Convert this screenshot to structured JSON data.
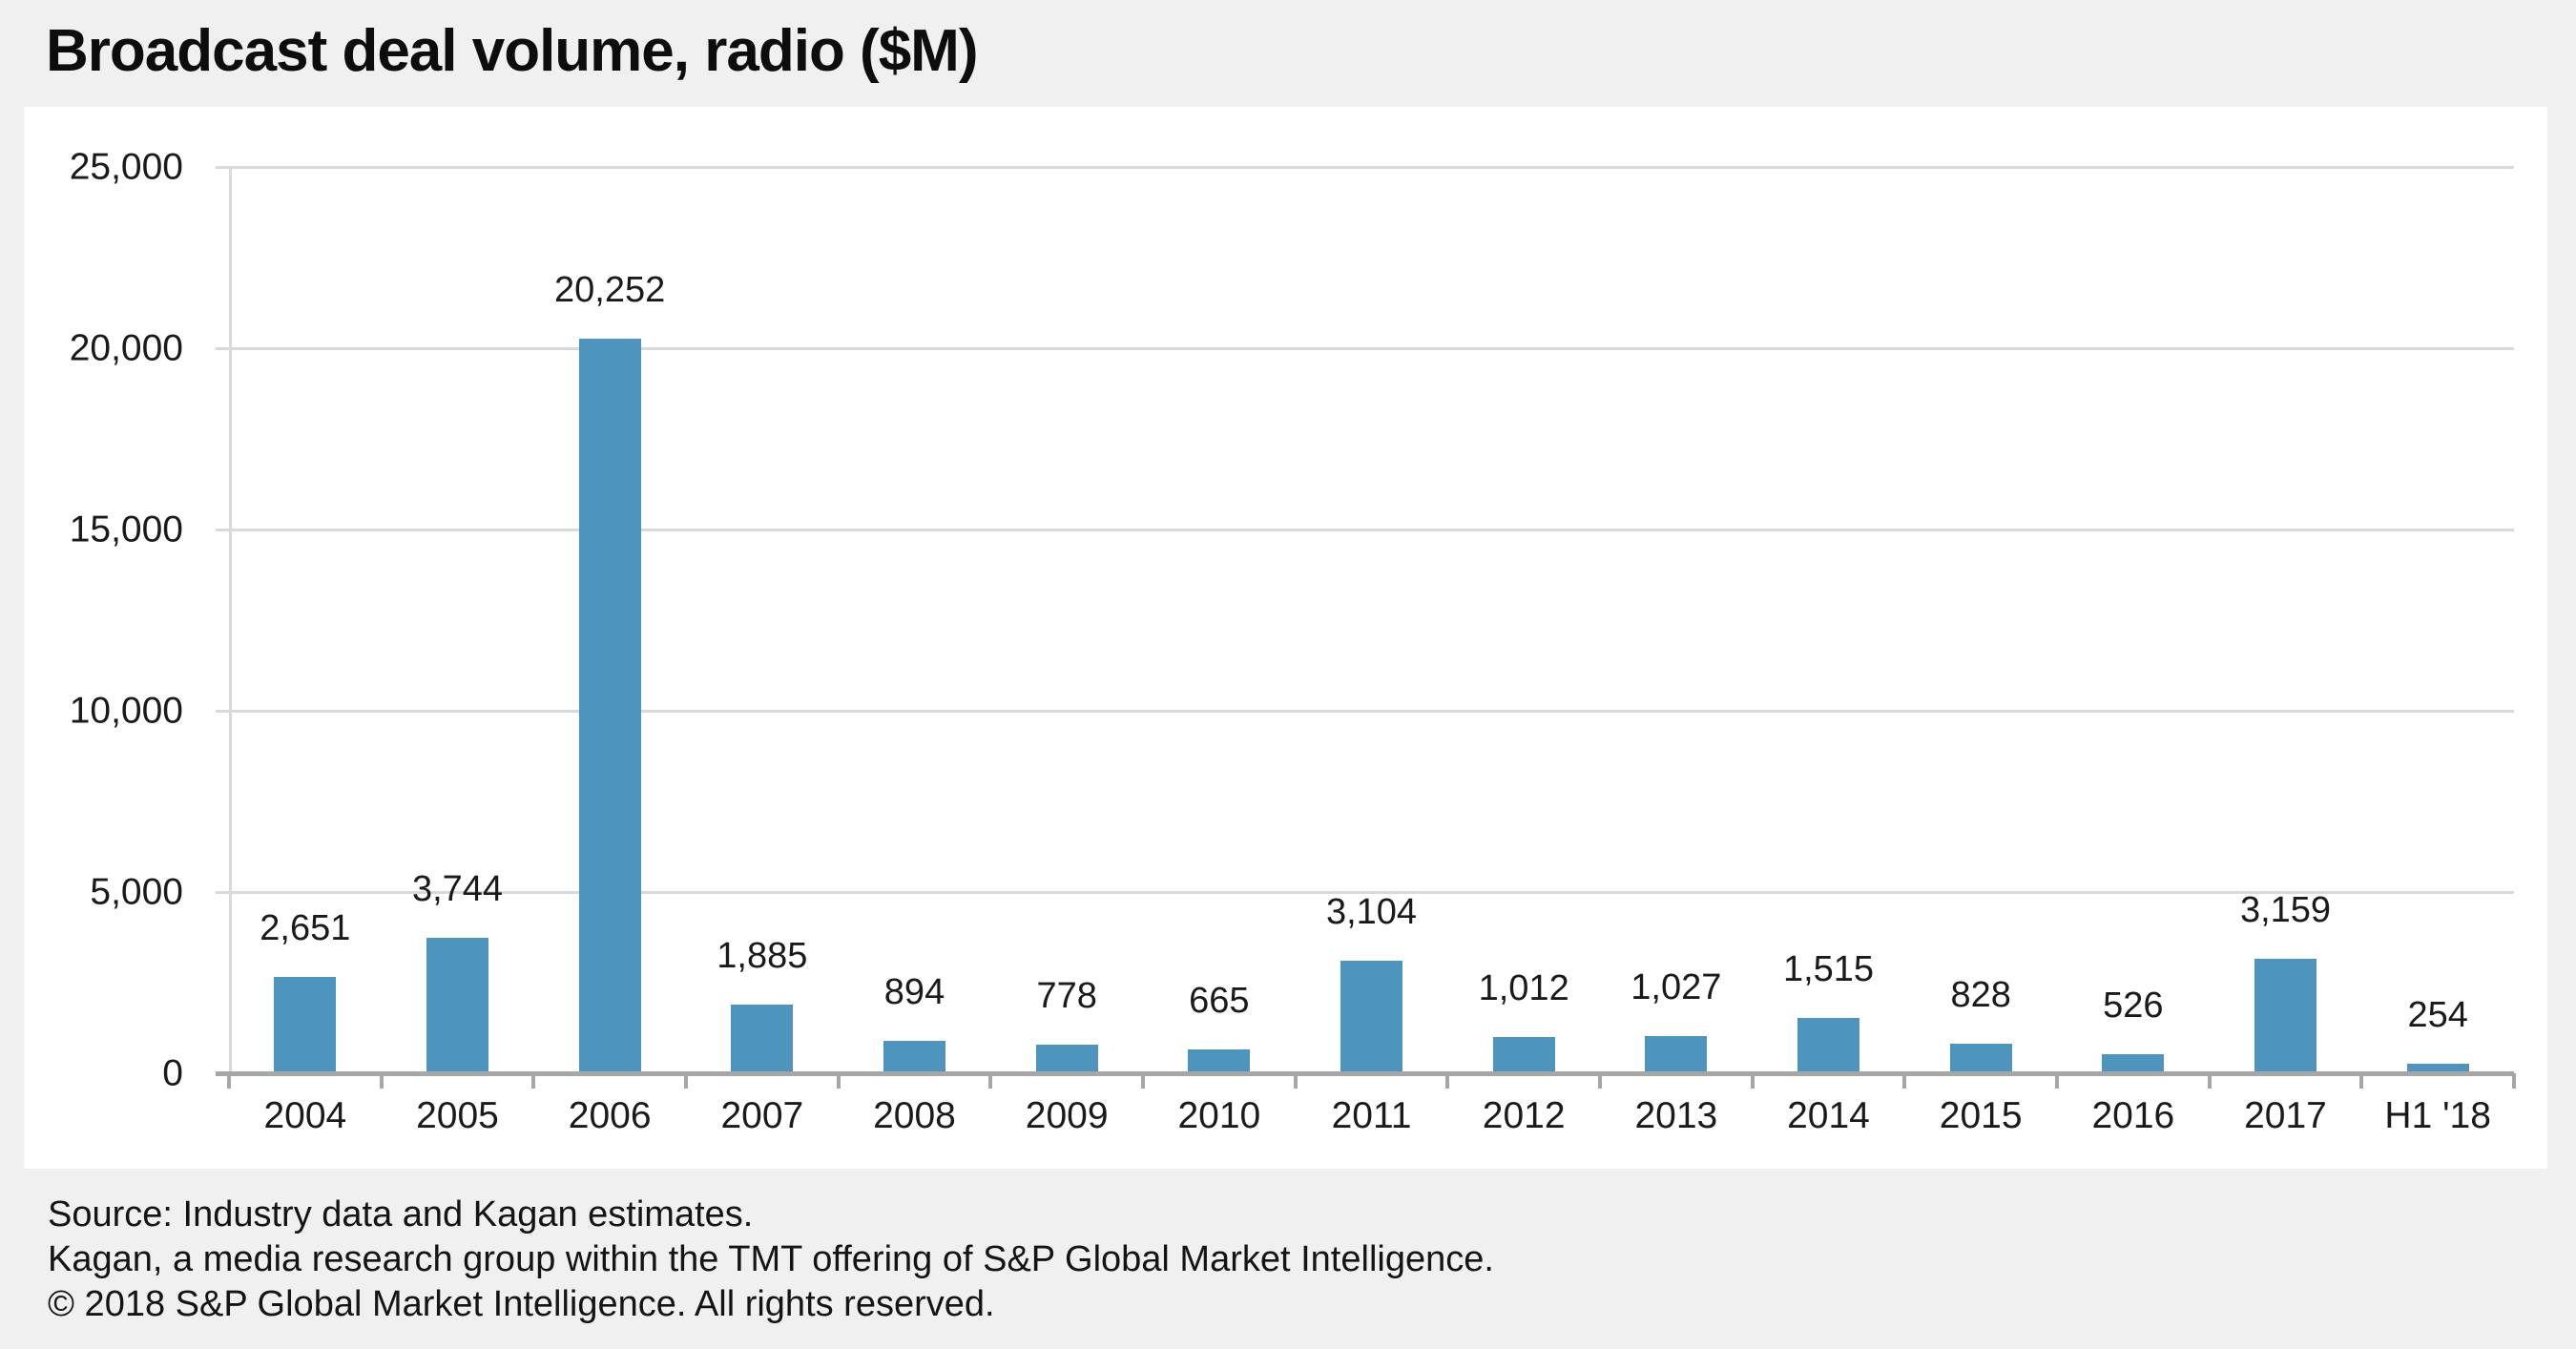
{
  "title": "Broadcast deal volume, radio ($M)",
  "chart_data": {
    "type": "bar",
    "title": "Broadcast deal volume, radio ($M)",
    "categories": [
      "2004",
      "2005",
      "2006",
      "2007",
      "2008",
      "2009",
      "2010",
      "2011",
      "2012",
      "2013",
      "2014",
      "2015",
      "2016",
      "2017",
      "H1 '18"
    ],
    "values": [
      2651,
      3744,
      20252,
      1885,
      894,
      778,
      665,
      3104,
      1012,
      1027,
      1515,
      828,
      526,
      3159,
      254
    ],
    "value_labels": [
      "2,651",
      "3,744",
      "20,252",
      "1,885",
      "894",
      "778",
      "665",
      "3,104",
      "1,012",
      "1,027",
      "1,515",
      "828",
      "526",
      "3,159",
      "254"
    ],
    "xlabel": "",
    "ylabel": "",
    "ylim": [
      0,
      25000
    ],
    "ytick_step": 5000,
    "ytick_labels": [
      "0",
      "5,000",
      "10,000",
      "15,000",
      "20,000",
      "25,000"
    ],
    "grid": "horizontal",
    "legend": "none"
  },
  "footer": {
    "line1": "Source: Industry data and Kagan estimates.",
    "line2": "Kagan, a media research group within the TMT offering of S&P Global Market Intelligence.",
    "line3": "© 2018 S&P Global Market Intelligence. All rights reserved."
  },
  "colors": {
    "bar": "#4E95BE",
    "gridline": "#D9D9D9",
    "axis_line": "#A6A6A6",
    "background": "#F0F0F0",
    "panel": "#FFFFFF",
    "text": "#1A1A1A"
  }
}
